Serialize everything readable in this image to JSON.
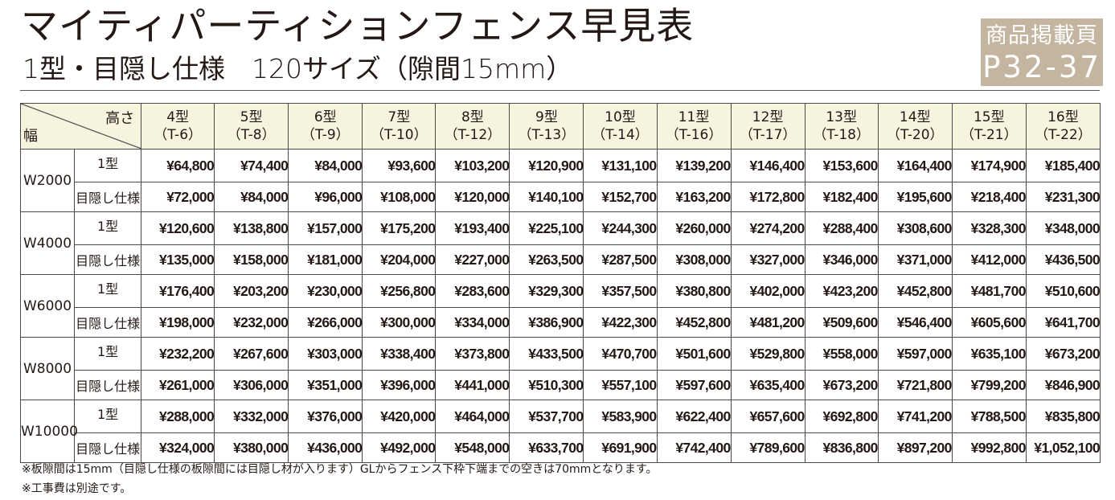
{
  "header": {
    "title": "マイティパーティションフェンス早見表",
    "subtitle": "1型・目隠し仕様　120サイズ（隙間15mm）"
  },
  "badge": {
    "line1": "商品掲載頁",
    "line2": "P32-37",
    "color": "#c4b5a0"
  },
  "table": {
    "corner_top": "高さ",
    "corner_bottom": "幅",
    "header_bg": "#f6f3df",
    "columns": [
      {
        "type": "4型",
        "code": "（T-6）"
      },
      {
        "type": "5型",
        "code": "（T-8）"
      },
      {
        "type": "6型",
        "code": "（T-9）"
      },
      {
        "type": "7型",
        "code": "（T-10）"
      },
      {
        "type": "8型",
        "code": "（T-12）"
      },
      {
        "type": "9型",
        "code": "（T-13）"
      },
      {
        "type": "10型",
        "code": "（T-14）"
      },
      {
        "type": "11型",
        "code": "（T-16）"
      },
      {
        "type": "12型",
        "code": "（T-17）"
      },
      {
        "type": "13型",
        "code": "（T-18）"
      },
      {
        "type": "14型",
        "code": "（T-20）"
      },
      {
        "type": "15型",
        "code": "（T-21）"
      },
      {
        "type": "16型",
        "code": "（T-22）"
      }
    ],
    "groups": [
      {
        "width": "W2000",
        "rows": [
          {
            "label": "1型",
            "prices": [
              "¥64,800",
              "¥74,400",
              "¥84,000",
              "¥93,600",
              "¥103,200",
              "¥120,900",
              "¥131,100",
              "¥139,200",
              "¥146,400",
              "¥153,600",
              "¥164,400",
              "¥174,900",
              "¥185,400"
            ]
          },
          {
            "label": "目隠し仕様",
            "prices": [
              "¥72,000",
              "¥84,000",
              "¥96,000",
              "¥108,000",
              "¥120,000",
              "¥140,100",
              "¥152,700",
              "¥163,200",
              "¥172,800",
              "¥182,400",
              "¥195,600",
              "¥218,400",
              "¥231,300"
            ]
          }
        ]
      },
      {
        "width": "W4000",
        "rows": [
          {
            "label": "1型",
            "prices": [
              "¥120,600",
              "¥138,800",
              "¥157,000",
              "¥175,200",
              "¥193,400",
              "¥225,100",
              "¥244,300",
              "¥260,000",
              "¥274,200",
              "¥288,400",
              "¥308,600",
              "¥328,300",
              "¥348,000"
            ]
          },
          {
            "label": "目隠し仕様",
            "prices": [
              "¥135,000",
              "¥158,000",
              "¥181,000",
              "¥204,000",
              "¥227,000",
              "¥263,500",
              "¥287,500",
              "¥308,000",
              "¥327,000",
              "¥346,000",
              "¥371,000",
              "¥412,000",
              "¥436,500"
            ]
          }
        ]
      },
      {
        "width": "W6000",
        "rows": [
          {
            "label": "1型",
            "prices": [
              "¥176,400",
              "¥203,200",
              "¥230,000",
              "¥256,800",
              "¥283,600",
              "¥329,300",
              "¥357,500",
              "¥380,800",
              "¥402,000",
              "¥423,200",
              "¥452,800",
              "¥481,700",
              "¥510,600"
            ]
          },
          {
            "label": "目隠し仕様",
            "prices": [
              "¥198,000",
              "¥232,000",
              "¥266,000",
              "¥300,000",
              "¥334,000",
              "¥386,900",
              "¥422,300",
              "¥452,800",
              "¥481,200",
              "¥509,600",
              "¥546,400",
              "¥605,600",
              "¥641,700"
            ]
          }
        ]
      },
      {
        "width": "W8000",
        "rows": [
          {
            "label": "1型",
            "prices": [
              "¥232,200",
              "¥267,600",
              "¥303,000",
              "¥338,400",
              "¥373,800",
              "¥433,500",
              "¥470,700",
              "¥501,600",
              "¥529,800",
              "¥558,000",
              "¥597,000",
              "¥635,100",
              "¥673,200"
            ]
          },
          {
            "label": "目隠し仕様",
            "prices": [
              "¥261,000",
              "¥306,000",
              "¥351,000",
              "¥396,000",
              "¥441,000",
              "¥510,300",
              "¥557,100",
              "¥597,600",
              "¥635,400",
              "¥673,200",
              "¥721,800",
              "¥799,200",
              "¥846,900"
            ]
          }
        ]
      },
      {
        "width": "W10000",
        "rows": [
          {
            "label": "1型",
            "prices": [
              "¥288,000",
              "¥332,000",
              "¥376,000",
              "¥420,000",
              "¥464,000",
              "¥537,700",
              "¥583,900",
              "¥622,400",
              "¥657,600",
              "¥692,800",
              "¥741,200",
              "¥788,500",
              "¥835,800"
            ]
          },
          {
            "label": "目隠し仕様",
            "prices": [
              "¥324,000",
              "¥380,000",
              "¥436,000",
              "¥492,000",
              "¥548,000",
              "¥633,700",
              "¥691,900",
              "¥742,400",
              "¥789,600",
              "¥836,800",
              "¥897,200",
              "¥992,800",
              "¥1,052,100"
            ]
          }
        ]
      }
    ]
  },
  "notes": [
    "※板隙間は15mm（目隠し仕様の板隙間には目隠し材が入ります）GLからフェンス下枠下端までの空きは70mmとなります。",
    "※工事費は別途です。"
  ]
}
